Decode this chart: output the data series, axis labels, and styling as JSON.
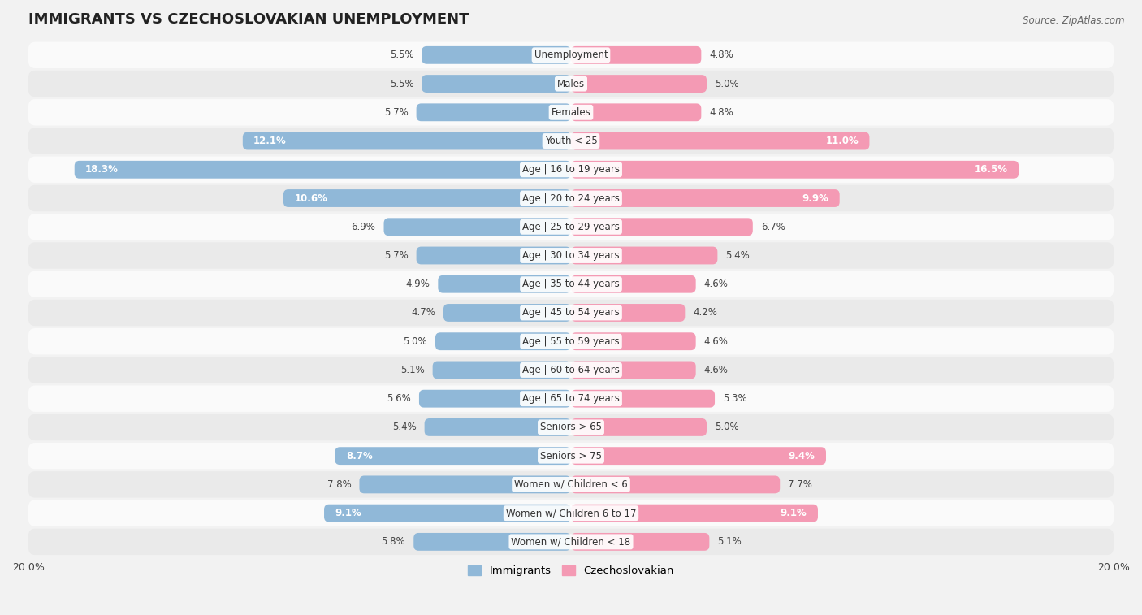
{
  "title": "IMMIGRANTS VS CZECHOSLOVAKIAN UNEMPLOYMENT",
  "source": "Source: ZipAtlas.com",
  "categories": [
    "Unemployment",
    "Males",
    "Females",
    "Youth < 25",
    "Age | 16 to 19 years",
    "Age | 20 to 24 years",
    "Age | 25 to 29 years",
    "Age | 30 to 34 years",
    "Age | 35 to 44 years",
    "Age | 45 to 54 years",
    "Age | 55 to 59 years",
    "Age | 60 to 64 years",
    "Age | 65 to 74 years",
    "Seniors > 65",
    "Seniors > 75",
    "Women w/ Children < 6",
    "Women w/ Children 6 to 17",
    "Women w/ Children < 18"
  ],
  "immigrants": [
    5.5,
    5.5,
    5.7,
    12.1,
    18.3,
    10.6,
    6.9,
    5.7,
    4.9,
    4.7,
    5.0,
    5.1,
    5.6,
    5.4,
    8.7,
    7.8,
    9.1,
    5.8
  ],
  "czechoslovakian": [
    4.8,
    5.0,
    4.8,
    11.0,
    16.5,
    9.9,
    6.7,
    5.4,
    4.6,
    4.2,
    4.6,
    4.6,
    5.3,
    5.0,
    9.4,
    7.7,
    9.1,
    5.1
  ],
  "immigrant_color": "#90b8d8",
  "czechoslovakian_color": "#f49ab4",
  "background_color": "#f2f2f2",
  "row_bg_light": "#fafafa",
  "row_bg_dark": "#eaeaea",
  "max_val": 20.0,
  "legend_immigrants": "Immigrants",
  "legend_czechoslovakian": "Czechoslovakian",
  "label_inside_threshold": 8.0
}
